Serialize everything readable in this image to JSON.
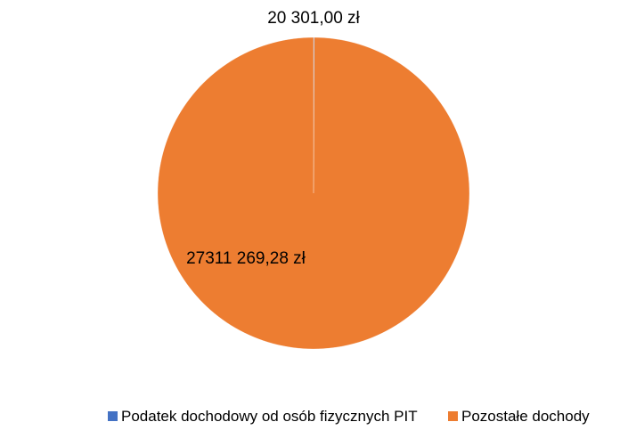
{
  "chart_data": {
    "type": "pie",
    "categories": [
      "Podatek dochodowy od osób fizycznych PIT",
      "Pozostałe dochody"
    ],
    "values": [
      20301.0,
      27311269.28
    ],
    "value_labels": [
      "20 301,00 zł",
      "27311 269,28 zł"
    ],
    "colors": [
      "#4472c4",
      "#ed7d31"
    ],
    "legend": "bottom"
  }
}
